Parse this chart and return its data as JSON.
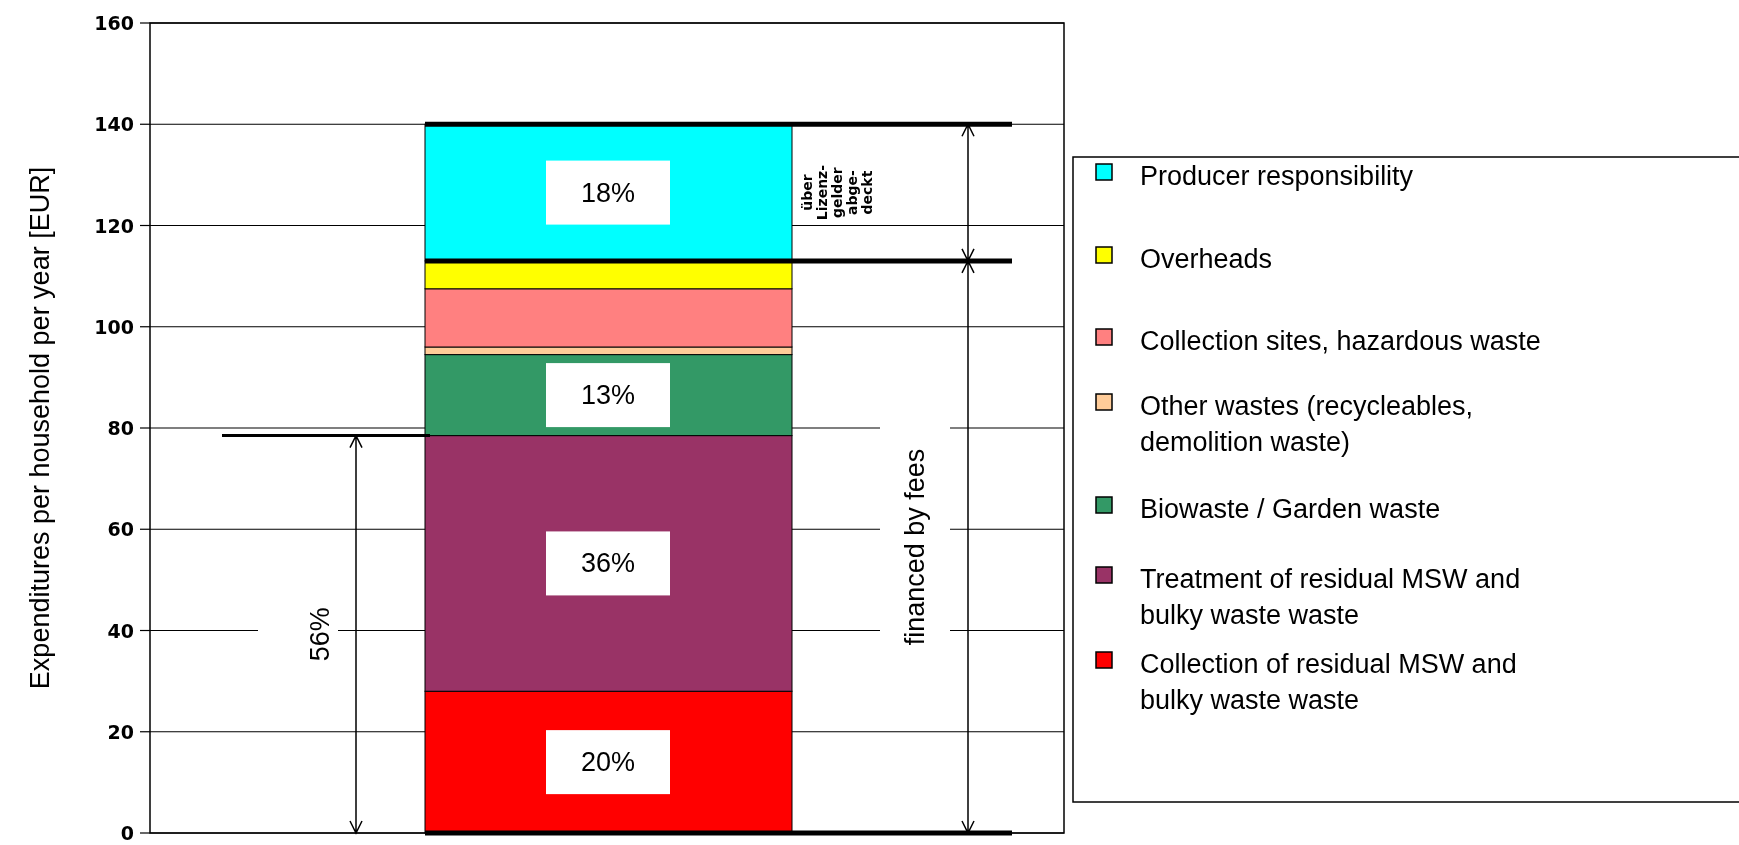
{
  "chart_data": {
    "type": "bar",
    "stacked": true,
    "ylabel": "Expenditures per household per year [EUR]",
    "categories": [
      null
    ],
    "series": [
      {
        "name": "Collection of residual MSW and bulky waste waste",
        "color": "#ff0000",
        "values": [
          28
        ]
      },
      {
        "name": "Treatment of residual MSW and bulky waste waste",
        "color": "#993366",
        "values": [
          50.5
        ]
      },
      {
        "name": "Biowaste / Garden waste",
        "color": "#339966",
        "values": [
          16
        ]
      },
      {
        "name": "Other wastes (recycleables, demolition waste)",
        "color": "#ffcc99",
        "values": [
          1.5
        ]
      },
      {
        "name": "Collection sites, hazardous waste",
        "color": "#ff8080",
        "values": [
          11.5
        ]
      },
      {
        "name": "Overheads",
        "color": "#ffff00",
        "values": [
          5.5
        ]
      },
      {
        "name": "Producer responsibility",
        "color": "#00ffff",
        "values": [
          27
        ]
      }
    ],
    "ylim": [
      0,
      160
    ],
    "yticks": [
      0,
      20,
      40,
      60,
      80,
      100,
      120,
      140,
      160
    ],
    "grid": "y",
    "legend": "right",
    "ref_lines": [
      {
        "axis": "y",
        "value": 78.5
      },
      {
        "axis": "y",
        "value": 113
      },
      {
        "axis": "y",
        "value": 140
      }
    ],
    "annotations": [
      "20%",
      "36%",
      "13%",
      "18%",
      "56%",
      "financed by fees",
      "über\nLizenz-\ngelder\nabge-\ndeckt"
    ]
  }
}
